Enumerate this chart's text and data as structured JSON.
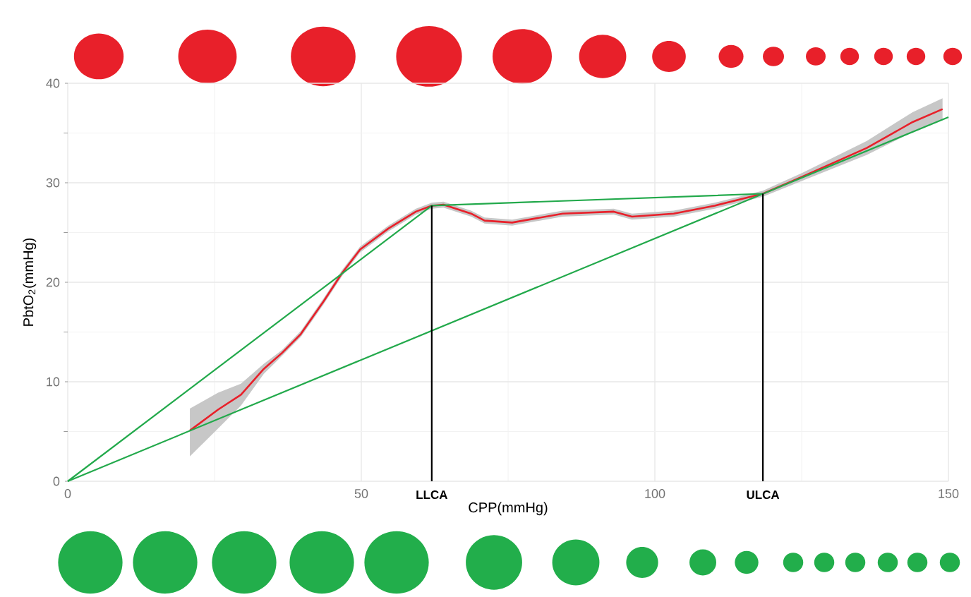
{
  "chart_data": {
    "type": "line",
    "xlabel": "CPP(mmHg)",
    "ylabel": "PbtO$_{2}$(mmHg)",
    "xlim": [
      0,
      150
    ],
    "ylim": [
      0,
      40
    ],
    "xticks": [
      0,
      50,
      100,
      150
    ],
    "yticks": [
      0,
      10,
      20,
      30,
      40
    ],
    "grid": true,
    "series": [
      {
        "color": "#e8202a",
        "x": [
          20.8,
          25.6,
          29.5,
          33.4,
          36.5,
          39.7,
          43.6,
          46.7,
          49.8,
          54.6,
          59.3,
          62,
          64,
          68.7,
          71,
          75.7,
          84.3,
          93,
          96.1,
          103.2,
          110.2,
          118.4,
          125.1,
          136.1,
          143.9,
          149
        ],
        "values": [
          5.1,
          7.2,
          8.7,
          11.3,
          12.9,
          14.8,
          18.1,
          20.9,
          23.3,
          25.4,
          27.1,
          27.7,
          27.8,
          26.9,
          26.2,
          26.0,
          26.9,
          27.1,
          26.6,
          26.9,
          27.7,
          28.9,
          30.6,
          33.5,
          36.1,
          37.4
        ],
        "lower": [
          2.5,
          5.3,
          7.6,
          10.8,
          12.6,
          14.5,
          17.8,
          20.6,
          23.0,
          25.1,
          26.8,
          27.4,
          27.5,
          26.6,
          25.9,
          25.7,
          26.6,
          26.8,
          26.3,
          26.6,
          27.4,
          28.6,
          30.2,
          32.8,
          35.1,
          36.3
        ],
        "upper": [
          7.3,
          8.9,
          9.8,
          11.8,
          13.2,
          15.1,
          18.4,
          21.2,
          23.6,
          25.7,
          27.4,
          28.0,
          28.1,
          27.2,
          26.5,
          26.3,
          27.2,
          27.4,
          26.9,
          27.2,
          28.0,
          29.2,
          31.0,
          34.2,
          37.1,
          38.5
        ]
      },
      {
        "color": "#22a94b",
        "x": [
          0,
          62,
          118.4
        ],
        "values": [
          0,
          27.7,
          28.9
        ]
      },
      {
        "color": "#22a94b",
        "x": [
          0,
          150
        ],
        "values": [
          0,
          36.6
        ]
      },
      {
        "color": "#000000",
        "x": [
          62,
          62
        ],
        "values": [
          0,
          27.7
        ]
      },
      {
        "color": "#000000",
        "x": [
          118.4,
          118.4
        ],
        "values": [
          0,
          28.9
        ]
      }
    ],
    "annotations": [
      {
        "text": "LLCA",
        "x": 62,
        "y": 0
      },
      {
        "text": "ULCA",
        "x": 118.4,
        "y": 0
      }
    ]
  }
}
